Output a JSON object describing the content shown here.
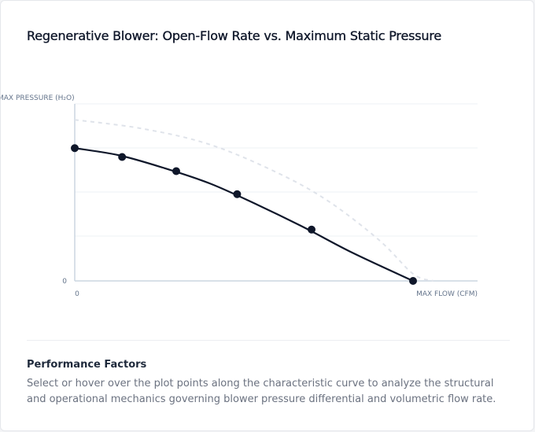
{
  "title": "Regenerative Blower: Open-Flow Rate vs. Maximum Static Pressure",
  "chart_data": {
    "type": "line",
    "x_axis": {
      "label": "MAX FLOW (CFM)",
      "tick_labels": [
        "0"
      ],
      "range": [
        0,
        100
      ]
    },
    "y_axis": {
      "label": "MAX PRESSURE (H₂O)",
      "tick_labels": [
        "0"
      ],
      "range": [
        0,
        100
      ]
    },
    "grid": {
      "horizontal": true,
      "vertical": false
    },
    "series": [
      {
        "style": "solid",
        "color": "#0f172a",
        "curve_x": [
          0,
          13,
          26,
          40,
          54,
          68,
          82,
          100
        ],
        "curve_y": [
          75,
          71,
          64,
          55,
          43,
          30,
          16,
          0
        ],
        "points": [
          {
            "x": 0,
            "y": 75
          },
          {
            "x": 14,
            "y": 70
          },
          {
            "x": 30,
            "y": 62
          },
          {
            "x": 48,
            "y": 49
          },
          {
            "x": 70,
            "y": 29
          },
          {
            "x": 100,
            "y": 0
          }
        ]
      },
      {
        "style": "dashed",
        "color": "#dfe3ea",
        "curve_x": [
          0,
          20,
          40,
          60,
          75,
          90,
          100,
          106
        ],
        "curve_y": [
          91,
          86,
          77,
          61,
          45,
          23,
          4,
          0
        ]
      }
    ]
  },
  "factors": {
    "title": "Performance Factors",
    "body": "Select or hover over the plot points along the characteristic curve to analyze the structural and operational mechanics governing blower pressure differential and volumetric flow rate."
  },
  "colors": {
    "accent": "#0f172a",
    "axis": "#cbd5e1",
    "grid": "#eef1f5",
    "muted": "#64748b"
  }
}
